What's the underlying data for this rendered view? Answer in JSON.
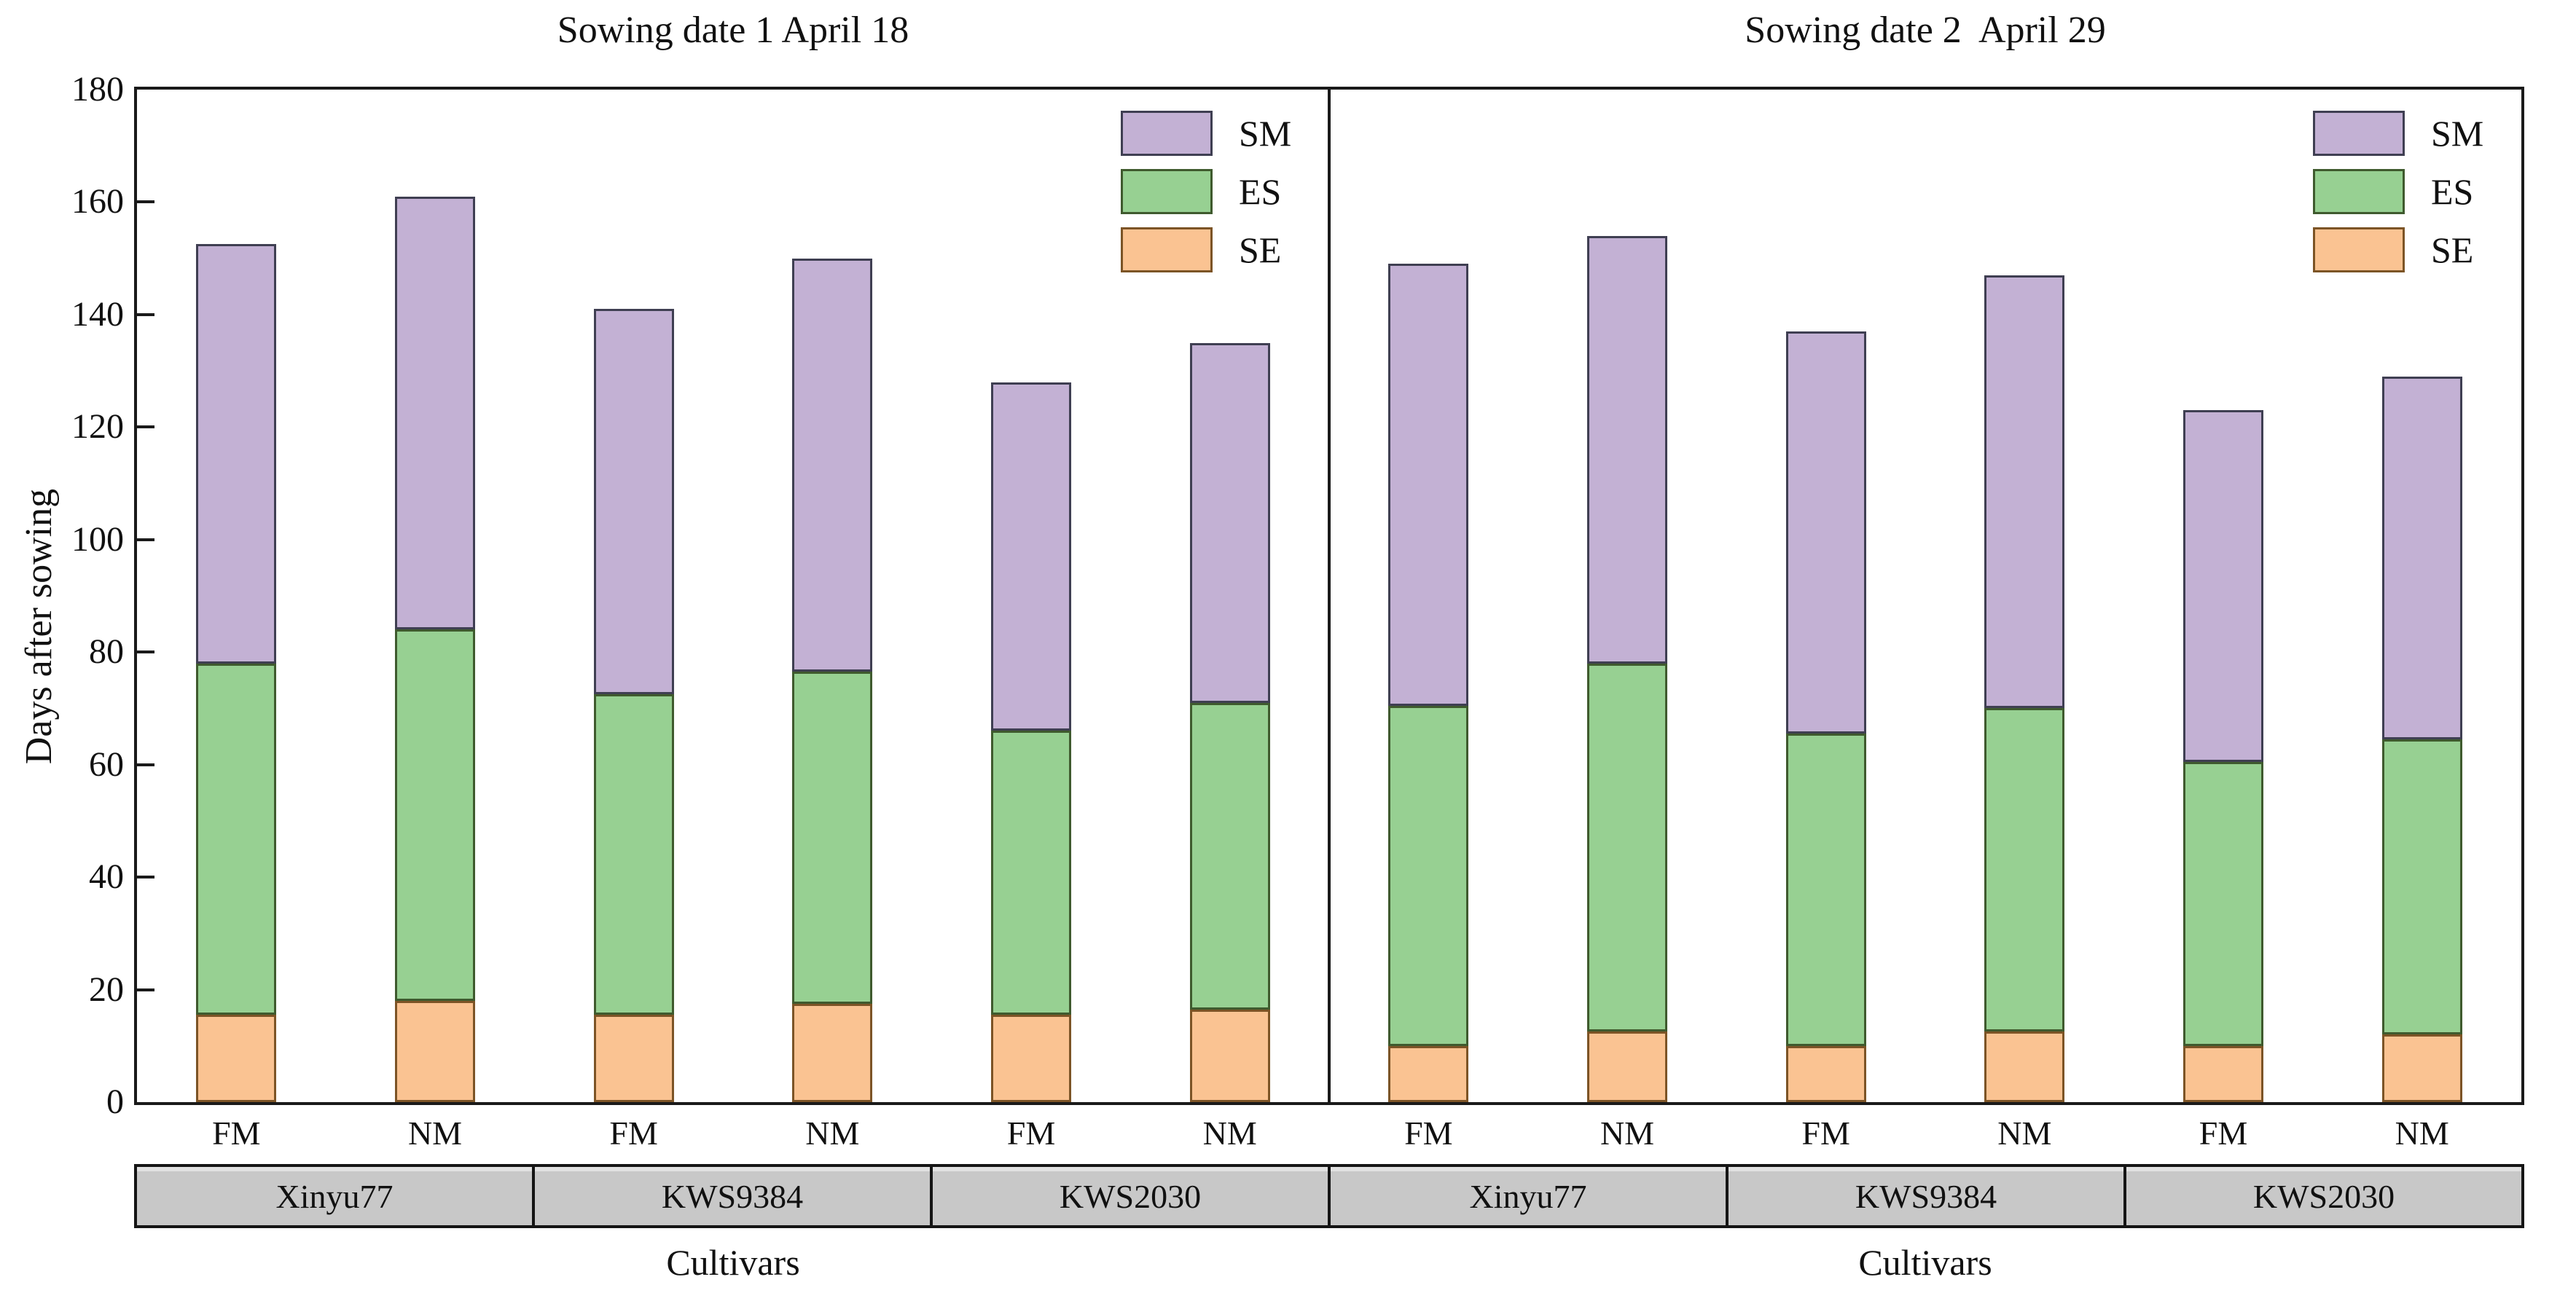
{
  "axes": {
    "y_label": "Days after sowing",
    "y_ticks": [
      0,
      20,
      40,
      60,
      80,
      100,
      120,
      140,
      160,
      180
    ],
    "x_label": "Cultivars"
  },
  "legend": {
    "order": [
      "SM",
      "ES",
      "SE"
    ]
  },
  "chart_data": [
    {
      "type": "bar",
      "stacked": true,
      "title": "Sowing date 1 April 18",
      "xlabel": "Cultivars",
      "ylabel": "Days after sowing",
      "ylim": [
        0,
        180
      ],
      "grid": false,
      "legend_position": "top-right",
      "groups": [
        "Xinyu77",
        "KWS9384",
        "KWS2030"
      ],
      "categories": [
        "FM",
        "NM",
        "FM",
        "NM",
        "FM",
        "NM"
      ],
      "series": [
        {
          "name": "SE",
          "color": "#fac392",
          "border": "#7c5426",
          "values": [
            15.5,
            18,
            15.5,
            17.5,
            15.5,
            16.5
          ]
        },
        {
          "name": "ES",
          "color": "#97d092",
          "border": "#3f5a2e",
          "values": [
            62.5,
            66,
            57,
            59,
            50.5,
            54.5
          ]
        },
        {
          "name": "SM",
          "color": "#c3b1d4",
          "border": "#3f3f52",
          "values": [
            74.5,
            77,
            68.5,
            73.5,
            62,
            64
          ]
        }
      ],
      "totals": [
        152.5,
        161,
        141,
        150,
        128,
        135
      ]
    },
    {
      "type": "bar",
      "stacked": true,
      "title": "Sowing date 2  April 29",
      "xlabel": "Cultivars",
      "ylabel": "Days after sowing",
      "ylim": [
        0,
        180
      ],
      "grid": false,
      "legend_position": "top-right",
      "groups": [
        "Xinyu77",
        "KWS9384",
        "KWS2030"
      ],
      "categories": [
        "FM",
        "NM",
        "FM",
        "NM",
        "FM",
        "NM"
      ],
      "series": [
        {
          "name": "SE",
          "color": "#fac392",
          "border": "#7c5426",
          "values": [
            10,
            12.5,
            10,
            12.5,
            10,
            12
          ]
        },
        {
          "name": "ES",
          "color": "#97d092",
          "border": "#3f5a2e",
          "values": [
            60.5,
            65.5,
            55.5,
            57.5,
            50.5,
            52.5
          ]
        },
        {
          "name": "SM",
          "color": "#c3b1d4",
          "border": "#3f3f52",
          "values": [
            78.5,
            76,
            71.5,
            77,
            62.5,
            64.5
          ]
        }
      ],
      "totals": [
        149,
        154,
        137,
        147,
        123,
        129
      ]
    }
  ]
}
